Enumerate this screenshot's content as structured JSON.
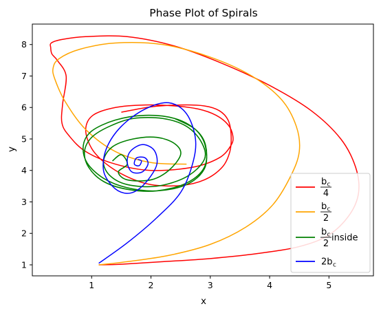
{
  "chart_data": {
    "type": "line",
    "title": "Phase Plot of Spirals",
    "xlabel": "x",
    "ylabel": "y",
    "xlim": [
      0.0,
      5.75
    ],
    "ylim": [
      0.65,
      8.65
    ],
    "xticks": [
      1,
      2,
      3,
      4,
      5
    ],
    "yticks": [
      1,
      2,
      3,
      4,
      5,
      6,
      7,
      8
    ],
    "grid": false,
    "legend_position": "lower-right",
    "series": [
      {
        "name": "b_c / 4",
        "legend": {
          "numerator": "b",
          "sub": "c",
          "denominator": "4",
          "suffix": ""
        },
        "color": "#ff0000",
        "x": [
          1.12,
          1.5,
          2.2,
          3.0,
          3.8,
          4.5,
          5.0,
          5.35,
          5.5,
          5.45,
          5.2,
          4.7,
          4.0,
          3.2,
          2.4,
          1.6,
          0.9,
          0.5,
          0.32,
          0.31,
          0.33,
          0.42,
          0.57,
          0.51,
          0.5,
          0.62,
          0.9,
          1.4,
          2.0,
          2.7,
          3.15,
          3.35,
          3.38,
          3.3,
          3.1,
          2.8,
          2.4,
          1.9,
          1.4,
          1.02,
          0.9,
          1.0,
          1.25,
          1.6,
          2.0,
          2.5,
          2.9,
          3.2,
          3.33,
          3.35,
          3.3,
          3.15,
          2.9,
          2.5,
          2.0,
          1.5
        ],
        "y": [
          1.0,
          1.02,
          1.1,
          1.2,
          1.36,
          1.58,
          1.95,
          2.6,
          3.3,
          4.1,
          5.0,
          5.9,
          6.7,
          7.4,
          7.95,
          8.25,
          8.25,
          8.16,
          8.05,
          7.9,
          7.7,
          7.5,
          7.0,
          6.1,
          5.5,
          5.1,
          4.6,
          4.2,
          4.0,
          4.1,
          4.4,
          4.8,
          5.1,
          5.45,
          5.75,
          5.95,
          6.05,
          6.08,
          6.0,
          5.75,
          5.3,
          4.7,
          4.2,
          3.8,
          3.55,
          3.52,
          3.7,
          4.1,
          4.6,
          5.15,
          5.6,
          5.9,
          6.05,
          6.08,
          6.02,
          5.85
        ]
      },
      {
        "name": "b_c / 2",
        "legend": {
          "numerator": "b",
          "sub": "c",
          "denominator": "2",
          "suffix": ""
        },
        "color": "#ffa500",
        "x": [
          1.12,
          1.6,
          2.3,
          3.0,
          3.6,
          4.05,
          4.35,
          4.5,
          4.45,
          4.2,
          3.7,
          3.0,
          2.2,
          1.4,
          0.8,
          0.45,
          0.35,
          0.38,
          0.55,
          0.9,
          1.4,
          2.0,
          2.6
        ],
        "y": [
          1.0,
          1.1,
          1.3,
          1.65,
          2.2,
          2.9,
          3.8,
          4.6,
          5.4,
          6.25,
          7.0,
          7.6,
          8.0,
          8.05,
          7.85,
          7.55,
          7.25,
          6.9,
          6.2,
          5.3,
          4.6,
          4.25,
          4.2
        ]
      },
      {
        "name": "b_c / 2 inside",
        "legend": {
          "numerator": "b",
          "sub": "c",
          "denominator": "2",
          "suffix": " inside"
        },
        "color": "#008000",
        "x": [
          1.35,
          1.5,
          1.6,
          1.45,
          1.6,
          2.0,
          2.3,
          2.5,
          2.4,
          2.1,
          1.7,
          1.35,
          1.2,
          1.3,
          1.6,
          2.1,
          2.6,
          2.9,
          2.85,
          2.6,
          2.2,
          1.7,
          1.3,
          1.0,
          0.88,
          0.95,
          1.2,
          1.6,
          2.1,
          2.6,
          2.9,
          2.92,
          2.75,
          2.4,
          1.9,
          1.4,
          1.0,
          0.86,
          0.92,
          1.2,
          1.6,
          2.1,
          2.6,
          2.9,
          2.92,
          2.75,
          2.4
        ],
        "y": [
          4.3,
          4.5,
          4.2,
          3.95,
          3.7,
          3.7,
          4.0,
          4.5,
          4.85,
          5.05,
          5.0,
          4.75,
          4.3,
          3.85,
          3.55,
          3.5,
          3.8,
          4.35,
          4.9,
          5.4,
          5.65,
          5.65,
          5.4,
          5.05,
          4.6,
          4.1,
          3.65,
          3.4,
          3.35,
          3.6,
          4.1,
          4.8,
          5.3,
          5.65,
          5.75,
          5.6,
          5.25,
          4.8,
          4.25,
          3.75,
          3.45,
          3.35,
          3.55,
          4.05,
          4.75,
          5.3,
          5.65
        ]
      },
      {
        "name": "2b_c",
        "legend": {
          "prefix": "2b",
          "sub": "c"
        },
        "color": "#0000ff",
        "x": [
          1.12,
          1.6,
          2.1,
          2.5,
          2.7,
          2.75,
          2.6,
          2.3,
          1.9,
          1.5,
          1.25,
          1.2,
          1.35,
          1.55,
          1.75,
          1.95,
          2.1,
          2.05,
          1.85,
          1.65,
          1.6,
          1.68,
          1.85,
          1.95,
          1.9,
          1.76,
          1.72,
          1.8,
          1.84,
          1.78
        ],
        "y": [
          1.05,
          1.7,
          2.5,
          3.3,
          4.2,
          5.0,
          5.8,
          6.15,
          5.95,
          5.4,
          4.7,
          4.0,
          3.5,
          3.28,
          3.35,
          3.7,
          4.2,
          4.65,
          4.82,
          4.6,
          4.25,
          3.95,
          3.95,
          4.2,
          4.4,
          4.4,
          4.2,
          4.15,
          4.3,
          4.35
        ]
      }
    ]
  }
}
